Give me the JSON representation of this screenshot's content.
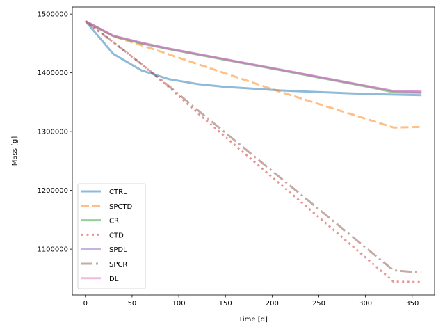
{
  "chart_data": {
    "type": "line",
    "title": "",
    "xlabel": "Time [d]",
    "ylabel": "Mass [g]",
    "xlim": [
      -14,
      374
    ],
    "ylim": [
      1022000,
      1512000
    ],
    "xticks": [
      0,
      50,
      100,
      150,
      200,
      250,
      300,
      350
    ],
    "yticks": [
      1100000,
      1200000,
      1300000,
      1400000,
      1500000
    ],
    "legend_position": "lower-left",
    "grid": false,
    "series": [
      {
        "name": "CTRL",
        "color": "#1f77b4",
        "dash": "solid",
        "x": [
          0,
          30,
          60,
          90,
          120,
          150,
          180,
          210,
          240,
          270,
          300,
          330,
          360
        ],
        "y": [
          1488000,
          1432000,
          1404000,
          1389000,
          1381000,
          1376000,
          1373000,
          1370000,
          1368000,
          1366000,
          1364000,
          1363000,
          1362000
        ]
      },
      {
        "name": "SPCTD",
        "color": "#ff7f0e",
        "dash": "dashed",
        "x": [
          0,
          30,
          60,
          90,
          120,
          150,
          180,
          210,
          240,
          270,
          300,
          330,
          360
        ],
        "y": [
          1488000,
          1462000,
          1447000,
          1431000,
          1415000,
          1399000,
          1383000,
          1367000,
          1352000,
          1337000,
          1322000,
          1307000,
          1308000
        ]
      },
      {
        "name": "CR",
        "color": "#2ca02c",
        "dash": "solid",
        "x": [
          0,
          30,
          60,
          90,
          120,
          150,
          180,
          210,
          240,
          270,
          300,
          330,
          360
        ],
        "y": [
          1488000,
          1462000,
          1450000,
          1440000,
          1431000,
          1422000,
          1413000,
          1404000,
          1395000,
          1386000,
          1377000,
          1367000,
          1366000
        ]
      },
      {
        "name": "CTD",
        "color": "#d62728",
        "dash": "dotted",
        "x": [
          0,
          30,
          60,
          90,
          120,
          150,
          180,
          210,
          240,
          270,
          300,
          330,
          360
        ],
        "y": [
          1488000,
          1452000,
          1415000,
          1375000,
          1332000,
          1291000,
          1250000,
          1209000,
          1168000,
          1127000,
          1086000,
          1045000,
          1044000
        ]
      },
      {
        "name": "SPDL",
        "color": "#9467bd",
        "dash": "solid",
        "x": [
          0,
          30,
          60,
          90,
          120,
          150,
          180,
          210,
          240,
          270,
          300,
          330,
          360
        ],
        "y": [
          1488000,
          1463000,
          1451000,
          1441000,
          1432000,
          1423000,
          1414000,
          1405000,
          1396000,
          1387000,
          1378000,
          1369000,
          1368000
        ]
      },
      {
        "name": "SPCR",
        "color": "#8c564b",
        "dash": "dashdot",
        "x": [
          0,
          30,
          60,
          90,
          120,
          150,
          180,
          210,
          240,
          270,
          300,
          330,
          360
        ],
        "y": [
          1488000,
          1452000,
          1415000,
          1377000,
          1337000,
          1298000,
          1259000,
          1220000,
          1181000,
          1142000,
          1103000,
          1064000,
          1060000
        ]
      },
      {
        "name": "DL",
        "color": "#e377c2",
        "dash": "solid",
        "x": [
          0,
          30,
          60,
          90,
          120,
          150,
          180,
          210,
          240,
          270,
          300,
          330,
          360
        ],
        "y": [
          1488000,
          1463000,
          1451000,
          1441000,
          1432000,
          1423000,
          1414000,
          1405000,
          1396000,
          1387000,
          1378000,
          1369000,
          1368000
        ]
      }
    ]
  }
}
